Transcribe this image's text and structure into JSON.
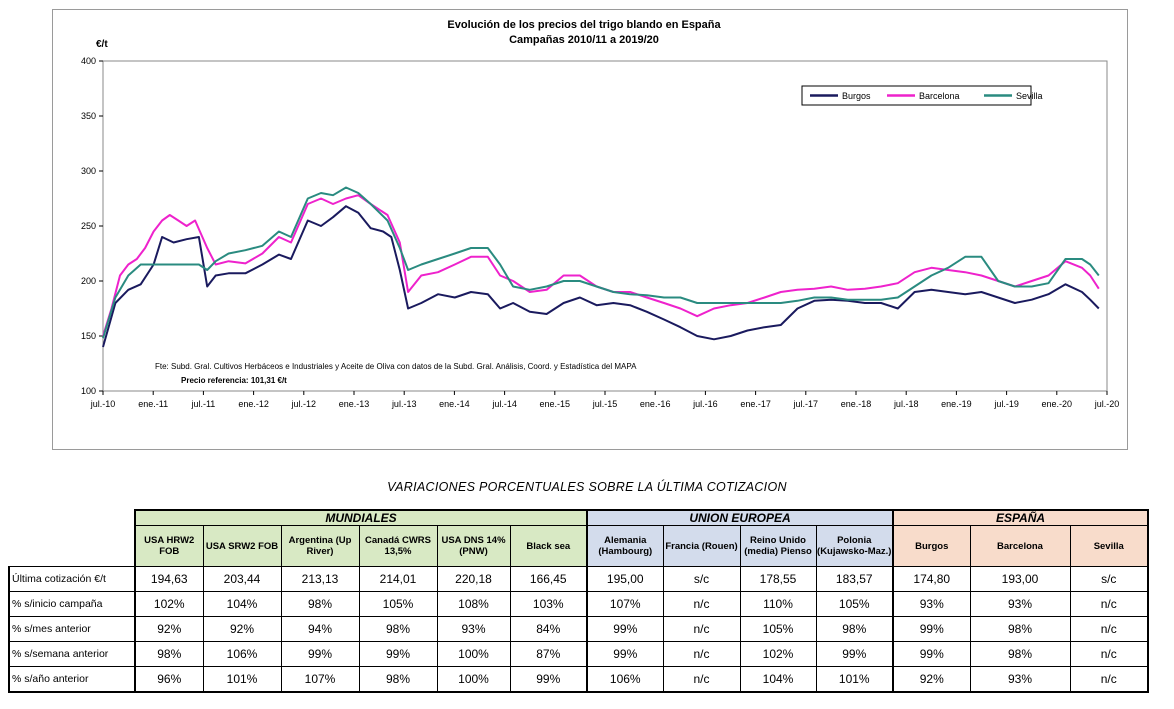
{
  "chart_data": {
    "type": "line",
    "title": "Evolución de los precios del trigo blando en España",
    "subtitle": "Campañas 2010/11 a 2019/20",
    "ylabel": "€/t",
    "ylim": [
      100,
      400
    ],
    "yticks": [
      "100",
      "150",
      "200",
      "250",
      "300",
      "350",
      "400"
    ],
    "x_range": [
      "2010-07",
      "2020-07"
    ],
    "xticks": [
      "jul.-10",
      "ene.-11",
      "jul.-11",
      "ene.-12",
      "jul.-12",
      "ene.-13",
      "jul.-13",
      "ene.-14",
      "jul.-14",
      "ene.-15",
      "jul.-15",
      "ene.-16",
      "jul.-16",
      "ene.-17",
      "jul.-17",
      "ene.-18",
      "jul.-18",
      "ene.-19",
      "jul.-19",
      "ene.-20",
      "jul.-20"
    ],
    "grid": "none",
    "legend_position": "top-right",
    "annotations": [
      "Fte: Subd. Gral. Cultivos Herbáceos e Industriales y Aceite de Oliva con datos de la Subd. Gral. Análisis, Coord. y Estadística del MAPA",
      "Precio referencia: 101,31 €/t"
    ],
    "series": [
      {
        "name": "Burgos",
        "color": "#1a1a5e",
        "points": [
          [
            "2010-07-01",
            140
          ],
          [
            "2010-08-15",
            180
          ],
          [
            "2010-10-01",
            192
          ],
          [
            "2010-11-15",
            197
          ],
          [
            "2011-01-01",
            215
          ],
          [
            "2011-02-01",
            240
          ],
          [
            "2011-03-15",
            235
          ],
          [
            "2011-05-01",
            238
          ],
          [
            "2011-06-15",
            240
          ],
          [
            "2011-07-15",
            195
          ],
          [
            "2011-08-15",
            205
          ],
          [
            "2011-10-01",
            207
          ],
          [
            "2011-12-01",
            207
          ],
          [
            "2012-02-01",
            215
          ],
          [
            "2012-04-01",
            224
          ],
          [
            "2012-05-15",
            220
          ],
          [
            "2012-07-15",
            255
          ],
          [
            "2012-09-01",
            250
          ],
          [
            "2012-10-15",
            258
          ],
          [
            "2012-12-01",
            268
          ],
          [
            "2013-01-15",
            262
          ],
          [
            "2013-03-01",
            248
          ],
          [
            "2013-04-15",
            245
          ],
          [
            "2013-05-15",
            240
          ],
          [
            "2013-06-15",
            210
          ],
          [
            "2013-07-15",
            175
          ],
          [
            "2013-09-01",
            180
          ],
          [
            "2013-11-01",
            188
          ],
          [
            "2014-01-01",
            185
          ],
          [
            "2014-03-01",
            190
          ],
          [
            "2014-05-01",
            188
          ],
          [
            "2014-06-15",
            175
          ],
          [
            "2014-08-01",
            180
          ],
          [
            "2014-10-01",
            172
          ],
          [
            "2014-12-01",
            170
          ],
          [
            "2015-02-01",
            180
          ],
          [
            "2015-04-01",
            185
          ],
          [
            "2015-06-01",
            178
          ],
          [
            "2015-08-01",
            180
          ],
          [
            "2015-10-01",
            178
          ],
          [
            "2015-12-01",
            172
          ],
          [
            "2016-02-01",
            165
          ],
          [
            "2016-04-01",
            158
          ],
          [
            "2016-06-01",
            150
          ],
          [
            "2016-08-01",
            147
          ],
          [
            "2016-10-01",
            150
          ],
          [
            "2016-12-01",
            155
          ],
          [
            "2017-02-01",
            158
          ],
          [
            "2017-04-01",
            160
          ],
          [
            "2017-06-01",
            175
          ],
          [
            "2017-08-01",
            182
          ],
          [
            "2017-10-01",
            183
          ],
          [
            "2017-12-01",
            182
          ],
          [
            "2018-02-01",
            180
          ],
          [
            "2018-04-01",
            180
          ],
          [
            "2018-06-01",
            175
          ],
          [
            "2018-08-01",
            190
          ],
          [
            "2018-10-01",
            192
          ],
          [
            "2018-12-01",
            190
          ],
          [
            "2019-02-01",
            188
          ],
          [
            "2019-04-01",
            190
          ],
          [
            "2019-06-01",
            185
          ],
          [
            "2019-08-01",
            180
          ],
          [
            "2019-10-01",
            183
          ],
          [
            "2019-12-01",
            188
          ],
          [
            "2020-02-01",
            197
          ],
          [
            "2020-04-01",
            190
          ],
          [
            "2020-05-01",
            183
          ],
          [
            "2020-06-01",
            175
          ]
        ]
      },
      {
        "name": "Barcelona",
        "color": "#ee22cc",
        "points": [
          [
            "2010-07-01",
            150
          ],
          [
            "2010-08-01",
            175
          ],
          [
            "2010-09-01",
            205
          ],
          [
            "2010-10-01",
            215
          ],
          [
            "2010-11-01",
            220
          ],
          [
            "2010-12-01",
            230
          ],
          [
            "2011-01-01",
            245
          ],
          [
            "2011-02-01",
            255
          ],
          [
            "2011-03-01",
            260
          ],
          [
            "2011-04-01",
            255
          ],
          [
            "2011-05-01",
            250
          ],
          [
            "2011-06-01",
            255
          ],
          [
            "2011-07-15",
            230
          ],
          [
            "2011-08-15",
            215
          ],
          [
            "2011-10-01",
            218
          ],
          [
            "2011-12-01",
            216
          ],
          [
            "2012-02-01",
            225
          ],
          [
            "2012-04-01",
            240
          ],
          [
            "2012-05-15",
            235
          ],
          [
            "2012-07-15",
            270
          ],
          [
            "2012-09-01",
            275
          ],
          [
            "2012-10-15",
            270
          ],
          [
            "2012-12-01",
            275
          ],
          [
            "2013-01-15",
            278
          ],
          [
            "2013-03-01",
            270
          ],
          [
            "2013-05-01",
            260
          ],
          [
            "2013-06-15",
            235
          ],
          [
            "2013-07-15",
            190
          ],
          [
            "2013-09-01",
            205
          ],
          [
            "2013-11-01",
            208
          ],
          [
            "2014-01-01",
            215
          ],
          [
            "2014-03-01",
            222
          ],
          [
            "2014-05-01",
            222
          ],
          [
            "2014-06-15",
            205
          ],
          [
            "2014-08-01",
            200
          ],
          [
            "2014-10-01",
            190
          ],
          [
            "2014-12-01",
            192
          ],
          [
            "2015-02-01",
            205
          ],
          [
            "2015-04-01",
            205
          ],
          [
            "2015-06-01",
            195
          ],
          [
            "2015-08-01",
            190
          ],
          [
            "2015-10-01",
            190
          ],
          [
            "2015-12-01",
            185
          ],
          [
            "2016-02-01",
            180
          ],
          [
            "2016-04-01",
            175
          ],
          [
            "2016-06-01",
            168
          ],
          [
            "2016-08-01",
            175
          ],
          [
            "2016-10-01",
            178
          ],
          [
            "2016-12-01",
            180
          ],
          [
            "2017-02-01",
            185
          ],
          [
            "2017-04-01",
            190
          ],
          [
            "2017-06-01",
            192
          ],
          [
            "2017-08-01",
            193
          ],
          [
            "2017-10-01",
            195
          ],
          [
            "2017-12-01",
            192
          ],
          [
            "2018-02-01",
            193
          ],
          [
            "2018-04-01",
            195
          ],
          [
            "2018-06-01",
            198
          ],
          [
            "2018-08-01",
            208
          ],
          [
            "2018-10-01",
            212
          ],
          [
            "2018-12-01",
            210
          ],
          [
            "2019-02-01",
            208
          ],
          [
            "2019-04-01",
            205
          ],
          [
            "2019-06-01",
            200
          ],
          [
            "2019-08-01",
            195
          ],
          [
            "2019-10-01",
            200
          ],
          [
            "2019-12-01",
            205
          ],
          [
            "2020-02-01",
            218
          ],
          [
            "2020-04-01",
            212
          ],
          [
            "2020-05-01",
            205
          ],
          [
            "2020-06-01",
            193
          ]
        ]
      },
      {
        "name": "Sevilla",
        "color": "#2a8b80",
        "points": [
          [
            "2010-07-01",
            148
          ],
          [
            "2010-08-15",
            185
          ],
          [
            "2010-10-01",
            205
          ],
          [
            "2010-11-15",
            215
          ],
          [
            "2011-01-01",
            215
          ],
          [
            "2011-03-01",
            215
          ],
          [
            "2011-05-01",
            215
          ],
          [
            "2011-06-15",
            215
          ],
          [
            "2011-07-15",
            210
          ],
          [
            "2011-08-15",
            218
          ],
          [
            "2011-10-01",
            225
          ],
          [
            "2011-12-01",
            228
          ],
          [
            "2012-02-01",
            232
          ],
          [
            "2012-04-01",
            245
          ],
          [
            "2012-05-15",
            240
          ],
          [
            "2012-07-15",
            275
          ],
          [
            "2012-09-01",
            280
          ],
          [
            "2012-10-15",
            278
          ],
          [
            "2012-12-01",
            285
          ],
          [
            "2013-01-15",
            280
          ],
          [
            "2013-03-01",
            270
          ],
          [
            "2013-05-01",
            255
          ],
          [
            "2013-06-15",
            230
          ],
          [
            "2013-07-15",
            210
          ],
          [
            "2013-09-01",
            215
          ],
          [
            "2013-11-01",
            220
          ],
          [
            "2014-01-01",
            225
          ],
          [
            "2014-03-01",
            230
          ],
          [
            "2014-05-01",
            230
          ],
          [
            "2014-06-15",
            215
          ],
          [
            "2014-08-01",
            195
          ],
          [
            "2014-10-01",
            192
          ],
          [
            "2014-12-01",
            195
          ],
          [
            "2015-02-01",
            200
          ],
          [
            "2015-04-01",
            200
          ],
          [
            "2015-06-01",
            195
          ],
          [
            "2015-08-01",
            190
          ],
          [
            "2015-10-01",
            188
          ],
          [
            "2015-12-01",
            187
          ],
          [
            "2016-02-01",
            185
          ],
          [
            "2016-04-01",
            185
          ],
          [
            "2016-06-01",
            180
          ],
          [
            "2016-08-01",
            180
          ],
          [
            "2016-10-01",
            180
          ],
          [
            "2016-12-01",
            180
          ],
          [
            "2017-02-01",
            180
          ],
          [
            "2017-04-01",
            180
          ],
          [
            "2017-06-01",
            182
          ],
          [
            "2017-08-01",
            185
          ],
          [
            "2017-10-01",
            185
          ],
          [
            "2017-12-01",
            183
          ],
          [
            "2018-02-01",
            183
          ],
          [
            "2018-04-01",
            183
          ],
          [
            "2018-06-01",
            185
          ],
          [
            "2018-08-01",
            195
          ],
          [
            "2018-10-01",
            205
          ],
          [
            "2018-12-01",
            212
          ],
          [
            "2019-02-01",
            222
          ],
          [
            "2019-04-01",
            222
          ],
          [
            "2019-06-01",
            200
          ],
          [
            "2019-08-01",
            195
          ],
          [
            "2019-10-01",
            195
          ],
          [
            "2019-12-01",
            198
          ],
          [
            "2020-02-01",
            220
          ],
          [
            "2020-04-01",
            220
          ],
          [
            "2020-05-01",
            215
          ],
          [
            "2020-06-01",
            205
          ]
        ]
      }
    ]
  },
  "table": {
    "title": "VARIACIONES PORCENTUALES SOBRE LA ÚLTIMA COTIZACION",
    "groups": [
      {
        "label": "MUNDIALES",
        "colspan": 6
      },
      {
        "label": "UNION EUROPEA",
        "colspan": 4
      },
      {
        "label": "ESPAÑA",
        "colspan": 3
      }
    ],
    "columns": [
      "USA HRW2 FOB",
      "USA SRW2 FOB",
      "Argentina (Up River)",
      "Canadá CWRS 13,5%",
      "USA DNS 14% (PNW)",
      "Black sea",
      "Alemania (Hambourg)",
      "Francia (Rouen)",
      "Reino Unido (media) Pienso",
      "Polonia (Kujawsko-Maz.)",
      "Burgos",
      "Barcelona",
      "Sevilla"
    ],
    "rows": [
      {
        "label": "Última cotización €/t",
        "values": [
          "194,63",
          "203,44",
          "213,13",
          "214,01",
          "220,18",
          "166,45",
          "195,00",
          "s/c",
          "178,55",
          "183,57",
          "174,80",
          "193,00",
          "s/c"
        ]
      },
      {
        "label": "% s/inicio campaña",
        "values": [
          "102%",
          "104%",
          "98%",
          "105%",
          "108%",
          "103%",
          "107%",
          "n/c",
          "110%",
          "105%",
          "93%",
          "93%",
          "n/c"
        ]
      },
      {
        "label": "% s/mes anterior",
        "values": [
          "92%",
          "92%",
          "94%",
          "98%",
          "93%",
          "84%",
          "99%",
          "n/c",
          "105%",
          "98%",
          "99%",
          "98%",
          "n/c"
        ]
      },
      {
        "label": "% s/semana anterior",
        "values": [
          "98%",
          "106%",
          "99%",
          "99%",
          "100%",
          "87%",
          "99%",
          "n/c",
          "102%",
          "99%",
          "99%",
          "98%",
          "n/c"
        ]
      },
      {
        "label": "% s/año anterior",
        "values": [
          "96%",
          "101%",
          "107%",
          "98%",
          "100%",
          "99%",
          "106%",
          "n/c",
          "104%",
          "101%",
          "92%",
          "93%",
          "n/c"
        ]
      }
    ]
  }
}
